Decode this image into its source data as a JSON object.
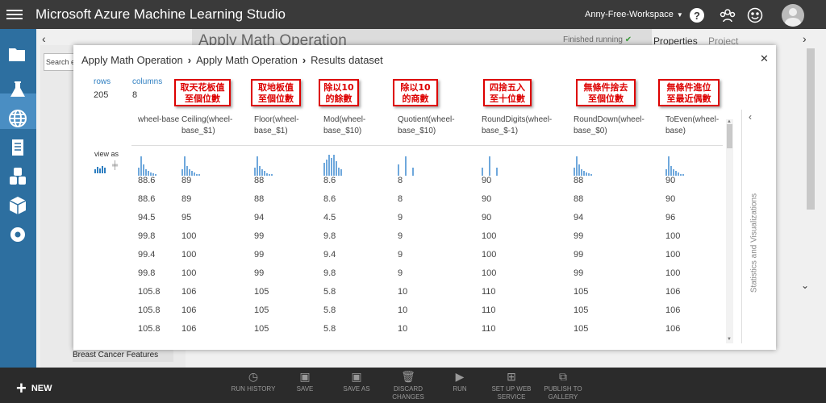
{
  "app": {
    "title": "Microsoft Azure Machine Learning Studio",
    "workspace": "Anny-Free-Workspace"
  },
  "background": {
    "experiment_title": "Apply Math Operation",
    "status": "Finished running",
    "panel_tabs": [
      "Properties",
      "Project"
    ],
    "search_placeholder": "Search e",
    "tree_item": "Breast Cancer Features"
  },
  "modal": {
    "breadcrumb": [
      "Apply Math Operation",
      "Apply Math Operation",
      "Results dataset"
    ],
    "rows_label": "rows",
    "rows_value": "205",
    "columns_label": "columns",
    "columns_value": "8",
    "view_as": "view as",
    "side_title": "Statistics and Visualizations"
  },
  "table": {
    "columns": [
      {
        "header": "wheel-base",
        "annotation": ""
      },
      {
        "header": "Ceiling(wheel-base_$1)",
        "annotation": "取天花板值\n至個位數"
      },
      {
        "header": "Floor(wheel-base_$1)",
        "annotation": "取地板值\n至個位數"
      },
      {
        "header": "Mod(wheel-base_$10)",
        "annotation": "除以10\n的餘數"
      },
      {
        "header": "Quotient(wheel-base_$10)",
        "annotation": "除以10\n的商數"
      },
      {
        "header": "RoundDigits(wheel-base_$-1)",
        "annotation": "四捨五入\n至十位數"
      },
      {
        "header": "RoundDown(wheel-base_$0)",
        "annotation": "無條件捨去\n至個位數"
      },
      {
        "header": "ToEven(wheel-base)",
        "annotation": "無條件進位\n至最近偶數"
      }
    ],
    "rows": [
      [
        "88.6",
        "89",
        "88",
        "8.6",
        "8",
        "90",
        "88",
        "90"
      ],
      [
        "88.6",
        "89",
        "88",
        "8.6",
        "8",
        "90",
        "88",
        "90"
      ],
      [
        "94.5",
        "95",
        "94",
        "4.5",
        "9",
        "90",
        "94",
        "96"
      ],
      [
        "99.8",
        "100",
        "99",
        "9.8",
        "9",
        "100",
        "99",
        "100"
      ],
      [
        "99.4",
        "100",
        "99",
        "9.4",
        "9",
        "100",
        "99",
        "100"
      ],
      [
        "99.8",
        "100",
        "99",
        "9.8",
        "9",
        "100",
        "99",
        "100"
      ],
      [
        "105.8",
        "106",
        "105",
        "5.8",
        "10",
        "110",
        "105",
        "106"
      ],
      [
        "105.8",
        "106",
        "105",
        "5.8",
        "10",
        "110",
        "105",
        "106"
      ],
      [
        "105.8",
        "106",
        "105",
        "5.8",
        "10",
        "110",
        "105",
        "106"
      ]
    ]
  },
  "bottombar": {
    "new_label": "NEW",
    "actions": [
      "RUN HISTORY",
      "SAVE",
      "SAVE AS",
      "DISCARD CHANGES",
      "RUN",
      "SET UP WEB SERVICE",
      "PUBLISH TO GALLERY"
    ]
  }
}
